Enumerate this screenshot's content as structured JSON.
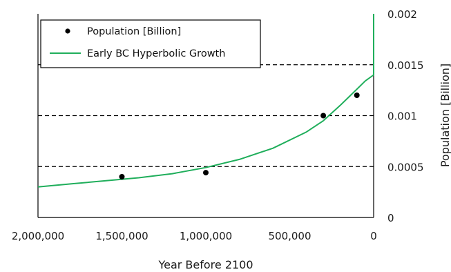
{
  "chart_data": {
    "type": "scatter",
    "title": "",
    "xlabel": "Year Before 2100",
    "ylabel": "Population [Billion]",
    "x_reversed": true,
    "xlim": [
      0,
      2000000
    ],
    "ylim": [
      0,
      0.002
    ],
    "x_ticks": [
      2000000,
      1500000,
      1000000,
      500000,
      0
    ],
    "x_tick_labels": [
      "2,000,000",
      "1,500,000",
      "1,000,000",
      "500,000",
      "0"
    ],
    "y_ticks": [
      0,
      0.0005,
      0.001,
      0.0015,
      0.002
    ],
    "y_tick_labels": [
      "0",
      "0.0005",
      "0.001",
      "0.0015",
      "0.002"
    ],
    "y_axis_side": "right",
    "grid": "horizontal dashed",
    "legend_position": "top-left",
    "series": [
      {
        "name": "Population [Billion]",
        "kind": "points",
        "color": "#000000",
        "x": [
          1500000,
          1000000,
          300000,
          100000
        ],
        "y": [
          0.0004,
          0.00044,
          0.001,
          0.0012
        ]
      },
      {
        "name": "Early BC Hyperbolic Growth",
        "kind": "line",
        "color": "#1fae5b",
        "x": [
          2000000,
          1800000,
          1600000,
          1400000,
          1200000,
          1000000,
          800000,
          600000,
          400000,
          300000,
          200000,
          100000,
          50000,
          0,
          0
        ],
        "y": [
          0.0003,
          0.00033,
          0.00036,
          0.00039,
          0.00043,
          0.00049,
          0.00057,
          0.00068,
          0.00084,
          0.00095,
          0.0011,
          0.00126,
          0.00134,
          0.0014,
          0.002
        ]
      }
    ]
  }
}
